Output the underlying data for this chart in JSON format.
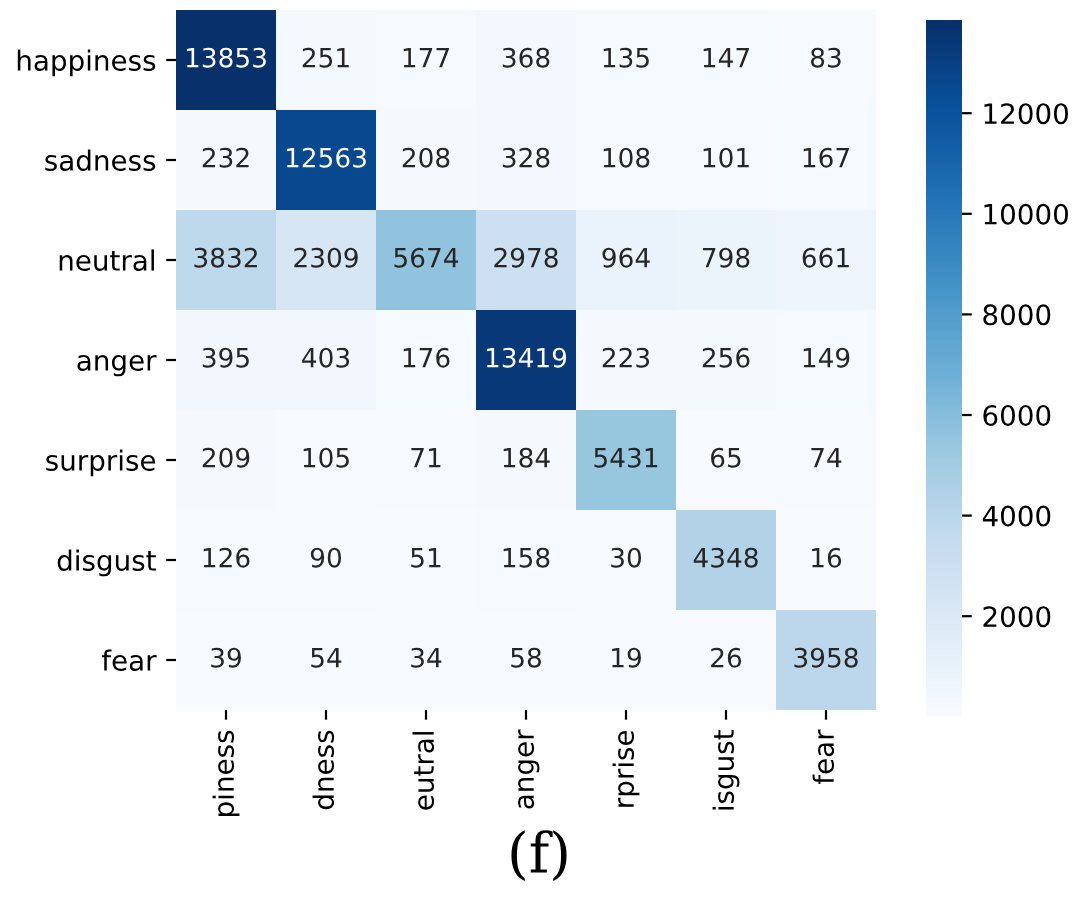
{
  "chart_data": {
    "type": "heatmap",
    "categories": [
      "piness",
      "dness",
      "eutral",
      "anger",
      "rprise",
      "isgust",
      "fear"
    ],
    "y_categories": [
      "happiness",
      "sadness",
      "neutral",
      "anger",
      "surprise",
      "disgust",
      "fear"
    ],
    "cells": [
      [
        13853,
        251,
        177,
        368,
        135,
        147,
        83
      ],
      [
        232,
        12563,
        208,
        328,
        108,
        101,
        167
      ],
      [
        3832,
        2309,
        5674,
        2978,
        964,
        798,
        661
      ],
      [
        395,
        403,
        176,
        13419,
        223,
        256,
        149
      ],
      [
        209,
        105,
        71,
        184,
        5431,
        65,
        74
      ],
      [
        126,
        90,
        51,
        158,
        30,
        4348,
        16
      ],
      [
        39,
        54,
        34,
        58,
        19,
        26,
        3958
      ]
    ],
    "clim": [
      16,
      13853
    ],
    "cticks": [
      2000,
      4000,
      6000,
      8000,
      10000,
      12000
    ],
    "data_labels": true,
    "annotations": [
      "(f)"
    ]
  }
}
